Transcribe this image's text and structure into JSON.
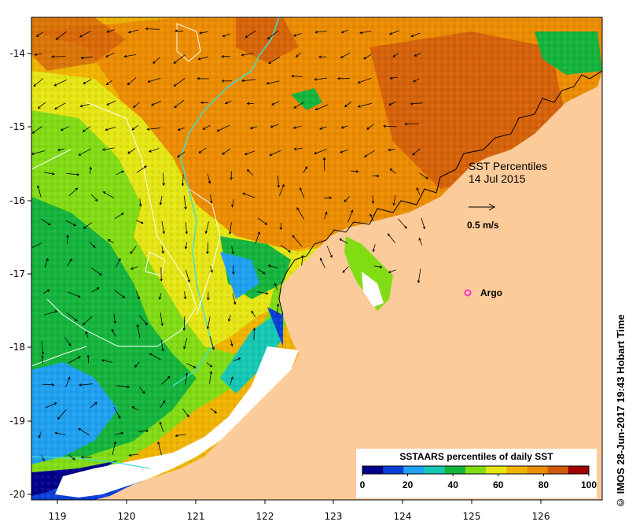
{
  "map": {
    "title_line1": "SST Percentiles",
    "title_line2": "14 Jul 2015",
    "velocity_scale_label": "0.5 m/s",
    "argo_label": "Argo",
    "credit": "© IMOS 28-Jun-2017 19:43 Hobart Time",
    "colorbar_title": "SSTAARS percentiles of daily SST",
    "colorbar_ticks": [
      "0",
      "20",
      "40",
      "60",
      "80",
      "100"
    ],
    "colorbar_colors": [
      "#00008b",
      "#0a3fd6",
      "#1fa0f0",
      "#14c8b4",
      "#14b43c",
      "#82dc14",
      "#e6e614",
      "#f0b400",
      "#ec8c00",
      "#d25a0a",
      "#a00000"
    ],
    "land_color": "#fccb9a",
    "ocean_outside_color": "#ffffff",
    "argo_color": "#ff33cc",
    "lon_ticks": [
      "119",
      "120",
      "121",
      "122",
      "123",
      "124",
      "125",
      "126"
    ],
    "lat_ticks": [
      "-14",
      "-15",
      "-16",
      "-17",
      "-18",
      "-19",
      "-20"
    ]
  }
}
